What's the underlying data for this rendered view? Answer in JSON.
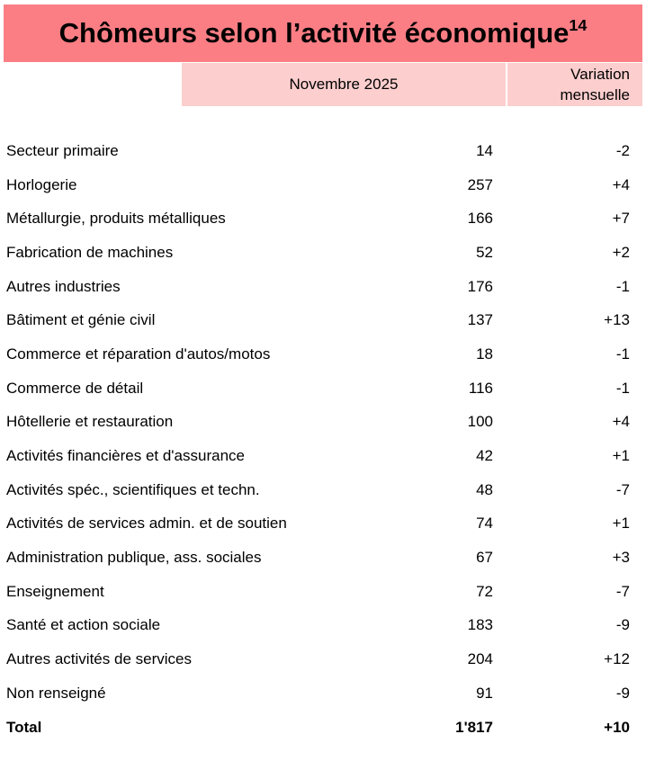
{
  "title": {
    "text": "Chômeurs selon l’activité économique",
    "superscript": "14"
  },
  "colors": {
    "title_bar": "#FB7E85",
    "header_bar": "#FCCECE",
    "text": "#000000"
  },
  "columns": {
    "period_label": "Novembre 2025",
    "variation_label": "Variation\nmensuelle"
  },
  "table": {
    "rows": [
      {
        "label": "Secteur primaire",
        "value": "14",
        "variation": "-2"
      },
      {
        "label": "Horlogerie",
        "value": "257",
        "variation": "+4"
      },
      {
        "label": "Métallurgie, produits métalliques",
        "value": "166",
        "variation": "+7"
      },
      {
        "label": "Fabrication de machines",
        "value": "52",
        "variation": "+2"
      },
      {
        "label": "Autres industries",
        "value": "176",
        "variation": "-1"
      },
      {
        "label": "Bâtiment et génie civil",
        "value": "137",
        "variation": "+13"
      },
      {
        "label": "Commerce et réparation d'autos/motos",
        "value": "18",
        "variation": "-1"
      },
      {
        "label": "Commerce de détail",
        "value": "116",
        "variation": "-1"
      },
      {
        "label": "Hôtellerie et restauration",
        "value": "100",
        "variation": "+4"
      },
      {
        "label": "Activités financières et d'assurance",
        "value": "42",
        "variation": "+1"
      },
      {
        "label": "Activités spéc., scientifiques et techn.",
        "value": "48",
        "variation": "-7"
      },
      {
        "label": "Activités de services admin. et de soutien",
        "value": "74",
        "variation": "+1"
      },
      {
        "label": "Administration publique, ass. sociales",
        "value": "67",
        "variation": "+3"
      },
      {
        "label": "Enseignement",
        "value": "72",
        "variation": "-7"
      },
      {
        "label": "Santé et action sociale",
        "value": "183",
        "variation": "-9"
      },
      {
        "label": "Autres activités de services",
        "value": "204",
        "variation": "+12"
      },
      {
        "label": "Non renseigné",
        "value": "91",
        "variation": "-9"
      },
      {
        "label": "Total",
        "value": "1'817",
        "variation": "+10",
        "bold": true
      }
    ]
  }
}
